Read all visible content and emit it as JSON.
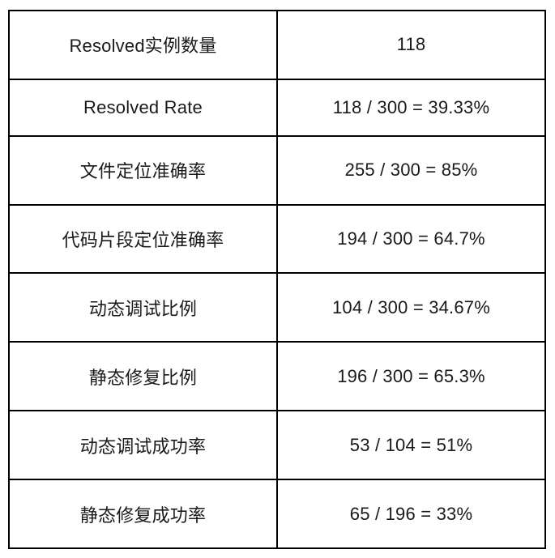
{
  "table": {
    "border_color": "#000000",
    "background_color": "#ffffff",
    "text_color": "#1a1a1a",
    "rows": [
      {
        "label": "Resolved实例数量",
        "value": "118"
      },
      {
        "label": "Resolved Rate",
        "value": "118 / 300 = 39.33%"
      },
      {
        "label": "文件定位准确率",
        "value": "255 / 300 = 85%"
      },
      {
        "label": "代码片段定位准确率",
        "value": "194 / 300 = 64.7%"
      },
      {
        "label": "动态调试比例",
        "value": "104 / 300 = 34.67%"
      },
      {
        "label": "静态修复比例",
        "value": "196 / 300 = 65.3%"
      },
      {
        "label": "动态调试成功率",
        "value": "53 / 104 = 51%"
      },
      {
        "label": "静态修复成功率",
        "value": "65 / 196 = 33%"
      }
    ]
  },
  "chart_data": {
    "type": "table",
    "title": "",
    "rows": [
      [
        "Resolved实例数量",
        "118"
      ],
      [
        "Resolved Rate",
        "118 / 300 = 39.33%"
      ],
      [
        "文件定位准确率",
        "255 / 300 = 85%"
      ],
      [
        "代码片段定位准确率",
        "194 / 300 = 64.7%"
      ],
      [
        "动态调试比例",
        "104 / 300 = 34.67%"
      ],
      [
        "静态修复比例",
        "196 / 300 = 65.3%"
      ],
      [
        "动态调试成功率",
        "53 / 104 = 51%"
      ],
      [
        "静态修复成功率",
        "65 / 196 = 33%"
      ]
    ],
    "metrics": [
      {
        "name": "Resolved实例数量",
        "numerator": 118,
        "denominator": null,
        "percent": null
      },
      {
        "name": "Resolved Rate",
        "numerator": 118,
        "denominator": 300,
        "percent": 39.33
      },
      {
        "name": "文件定位准确率",
        "numerator": 255,
        "denominator": 300,
        "percent": 85
      },
      {
        "name": "代码片段定位准确率",
        "numerator": 194,
        "denominator": 300,
        "percent": 64.7
      },
      {
        "name": "动态调试比例",
        "numerator": 104,
        "denominator": 300,
        "percent": 34.67
      },
      {
        "name": "静态修复比例",
        "numerator": 196,
        "denominator": 300,
        "percent": 65.3
      },
      {
        "name": "动态调试成功率",
        "numerator": 53,
        "denominator": 104,
        "percent": 51
      },
      {
        "name": "静态修复成功率",
        "numerator": 65,
        "denominator": 196,
        "percent": 33
      }
    ]
  }
}
